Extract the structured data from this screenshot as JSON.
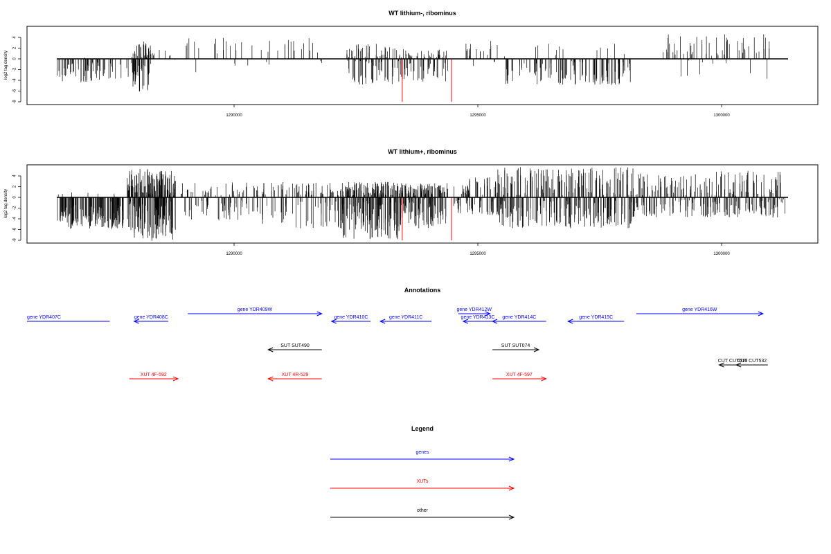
{
  "colors": {
    "gene": "#0000ff",
    "xut": "#ff0000",
    "other": "#000000",
    "axis": "#000000",
    "marker": "#ff0000"
  },
  "chart_data": [
    {
      "type": "bar",
      "title": "WT lithium-, ribominus",
      "ylabel": "log2 tag density",
      "ylim": [
        -8,
        5.5
      ],
      "yticks": [
        4,
        2,
        0,
        -2,
        -4,
        -6,
        -8
      ],
      "xticks": [
        1290000,
        1295000,
        1300000
      ],
      "xlim": [
        1285300,
        1301600
      ],
      "marker_lines": [
        1293450,
        1294460
      ],
      "segments": [
        {
          "start": 1285400,
          "end": 1287900,
          "side": "neg",
          "density": 110,
          "pos_max": 0.5,
          "neg_max": 4,
          "seed": 11
        },
        {
          "start": 1287900,
          "end": 1288300,
          "side": "both",
          "density": 80,
          "pos_max": 3,
          "neg_max": 6,
          "seed": 12
        },
        {
          "start": 1288300,
          "end": 1288800,
          "side": "pos",
          "density": 8,
          "pos_max": 2,
          "neg_max": 1,
          "seed": 13
        },
        {
          "start": 1289000,
          "end": 1291800,
          "side": "pos",
          "density": 40,
          "pos_max": 3.5,
          "neg_max": 2.5,
          "seed": 14
        },
        {
          "start": 1292300,
          "end": 1293300,
          "side": "both",
          "density": 90,
          "pos_max": 2.5,
          "neg_max": 4.5,
          "seed": 15
        },
        {
          "start": 1293300,
          "end": 1294400,
          "side": "both",
          "density": 80,
          "pos_max": 1.5,
          "neg_max": 4,
          "seed": 16
        },
        {
          "start": 1294700,
          "end": 1295400,
          "side": "pos",
          "density": 20,
          "pos_max": 3.3,
          "neg_max": 1.5,
          "seed": 17
        },
        {
          "start": 1295500,
          "end": 1298200,
          "side": "neg",
          "density": 130,
          "pos_max": 3,
          "neg_max": 4.5,
          "seed": 18
        },
        {
          "start": 1298800,
          "end": 1301000,
          "side": "pos",
          "density": 60,
          "pos_max": 4.2,
          "neg_max": 3.8,
          "seed": 19
        }
      ]
    },
    {
      "type": "bar",
      "title": "WT lithium+, ribominus",
      "ylabel": "log2 tag density",
      "ylim": [
        -8,
        5.5
      ],
      "yticks": [
        4,
        2,
        0,
        -2,
        -4,
        -6,
        -8
      ],
      "xticks": [
        1290000,
        1295000,
        1300000
      ],
      "xlim": [
        1285300,
        1301600
      ],
      "marker_lines": [
        1293450,
        1294460
      ],
      "segments": [
        {
          "start": 1285300,
          "end": 1287800,
          "side": "neg",
          "density": 260,
          "pos_max": 1,
          "neg_max": 5.5,
          "seed": 21
        },
        {
          "start": 1287800,
          "end": 1288800,
          "side": "both",
          "density": 240,
          "pos_max": 5,
          "neg_max": 7.8,
          "seed": 22
        },
        {
          "start": 1288900,
          "end": 1290400,
          "side": "both",
          "density": 80,
          "pos_max": 2.8,
          "neg_max": 4,
          "seed": 23
        },
        {
          "start": 1290400,
          "end": 1292200,
          "side": "both",
          "density": 130,
          "pos_max": 2.6,
          "neg_max": 5.5,
          "seed": 24
        },
        {
          "start": 1292200,
          "end": 1293400,
          "side": "both",
          "density": 220,
          "pos_max": 2.6,
          "neg_max": 7.5,
          "seed": 25
        },
        {
          "start": 1293400,
          "end": 1294400,
          "side": "both",
          "density": 180,
          "pos_max": 2.4,
          "neg_max": 5.5,
          "seed": 26
        },
        {
          "start": 1294500,
          "end": 1295400,
          "side": "both",
          "density": 90,
          "pos_max": 3.6,
          "neg_max": 3,
          "seed": 27
        },
        {
          "start": 1295400,
          "end": 1298200,
          "side": "both",
          "density": 320,
          "pos_max": 5.4,
          "neg_max": 5.5,
          "seed": 28
        },
        {
          "start": 1298200,
          "end": 1301300,
          "side": "both",
          "density": 260,
          "pos_max": 4.7,
          "neg_max": 3.5,
          "seed": 29
        }
      ]
    }
  ],
  "annotations": {
    "title": "Annotations",
    "items": [
      {
        "label": "gene YDR407C",
        "type": "gene",
        "start": 1285300,
        "end": 1287450,
        "dir": "none",
        "row": 0
      },
      {
        "label": "gene YDR408C",
        "type": "gene",
        "start": 1287950,
        "end": 1288650,
        "dir": "left",
        "row": 0
      },
      {
        "label": "gene YDR409W",
        "type": "gene",
        "start": 1289050,
        "end": 1291800,
        "dir": "right",
        "row": -1
      },
      {
        "label": "gene YDR410C",
        "type": "gene",
        "start": 1292000,
        "end": 1292800,
        "dir": "left",
        "row": 0
      },
      {
        "label": "gene YDR411C",
        "type": "gene",
        "start": 1293000,
        "end": 1294050,
        "dir": "left",
        "row": 0
      },
      {
        "label": "gene YDR412W",
        "type": "gene",
        "start": 1294600,
        "end": 1295250,
        "dir": "right",
        "row": -1
      },
      {
        "label": "gene YDR413C",
        "type": "gene",
        "start": 1294700,
        "end": 1295300,
        "dir": "left",
        "row": 0
      },
      {
        "label": "gene YDR414C",
        "type": "gene",
        "start": 1295300,
        "end": 1296400,
        "dir": "left",
        "row": 0
      },
      {
        "label": "gene YDR415C",
        "type": "gene",
        "start": 1296850,
        "end": 1298000,
        "dir": "left",
        "row": 0
      },
      {
        "label": "gene YDR416W",
        "type": "gene",
        "start": 1298250,
        "end": 1300850,
        "dir": "right",
        "row": -1
      },
      {
        "label": "SUT SUT490",
        "type": "other",
        "start": 1290700,
        "end": 1291800,
        "dir": "left",
        "row": 1
      },
      {
        "label": "SUT SUT074",
        "type": "other",
        "start": 1295300,
        "end": 1296250,
        "dir": "right",
        "row": 1
      },
      {
        "label": "CUT CUT616",
        "type": "other",
        "start": 1299950,
        "end": 1300500,
        "dir": "left",
        "row": 2
      },
      {
        "label": "CUT CUT532",
        "type": "other",
        "start": 1300300,
        "end": 1300950,
        "dir": "left",
        "row": 2
      },
      {
        "label": "XUT 4F-592",
        "type": "xut",
        "start": 1287850,
        "end": 1288850,
        "dir": "right",
        "row": 3
      },
      {
        "label": "XUT 4R-529",
        "type": "xut",
        "start": 1290700,
        "end": 1291800,
        "dir": "left",
        "row": 3
      },
      {
        "label": "XUT 4F-597",
        "type": "xut",
        "start": 1295300,
        "end": 1296400,
        "dir": "right",
        "row": 3
      }
    ]
  },
  "legend": {
    "title": "Legend",
    "items": [
      {
        "label": "genes",
        "type": "gene"
      },
      {
        "label": "XUTs",
        "type": "xut"
      },
      {
        "label": "other",
        "type": "other"
      }
    ]
  }
}
